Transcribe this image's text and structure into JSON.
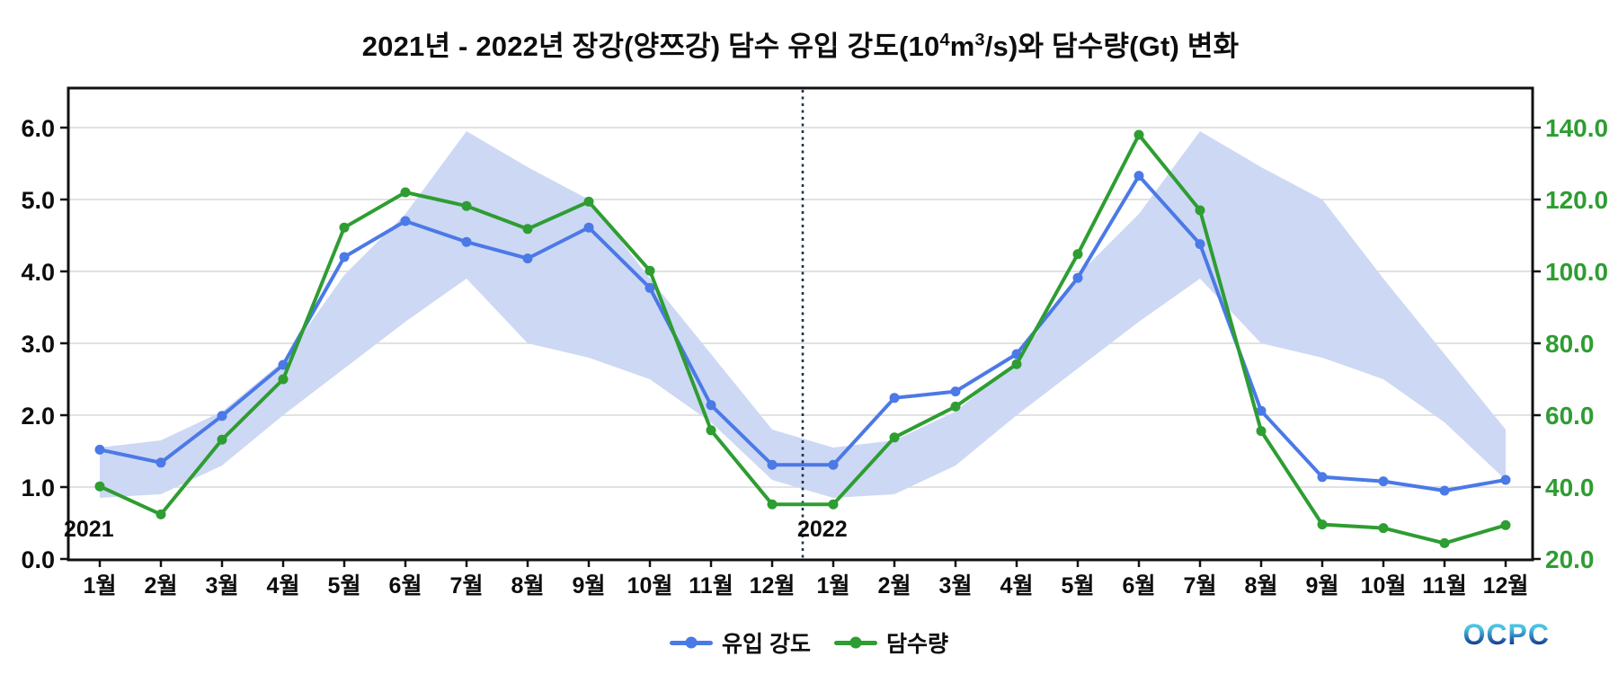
{
  "title": {
    "pre": "2021년 - 2022년 장강(양쯔강) 담수 유입 강도(10",
    "sup_a": "4",
    "mid": "m",
    "sup_b": "3",
    "post": "/s)와 담수량(Gt) 변화"
  },
  "legend": {
    "items": [
      {
        "label": "유입 강도",
        "color": "#4b79e6",
        "marker": "circle-on-line"
      },
      {
        "label": "담수량",
        "color": "#2e9d32",
        "marker": "circle-on-line"
      }
    ]
  },
  "logo": {
    "text": "OCPC",
    "gradient_top": "#4cc2e2",
    "gradient_bottom": "#153f92"
  },
  "chart_data": {
    "type": "line",
    "title": "2021년 - 2022년 장강(양쯔강) 담수 유입 강도(10⁴m³/s)와 담수량(Gt) 변화",
    "x_tick_labels": [
      "1월",
      "2월",
      "3월",
      "4월",
      "5월",
      "6월",
      "7월",
      "8월",
      "9월",
      "10월",
      "11월",
      "12월",
      "1월",
      "2월",
      "3월",
      "4월",
      "5월",
      "6월",
      "7월",
      "8월",
      "9월",
      "10월",
      "11월",
      "12월"
    ],
    "year_labels": [
      {
        "text": "2021",
        "month_index": 0
      },
      {
        "text": "2022",
        "month_index": 12
      }
    ],
    "left_axis": {
      "ticks": [
        0.0,
        1.0,
        2.0,
        3.0,
        4.0,
        5.0,
        6.0
      ],
      "range": [
        0.0,
        6.55
      ],
      "text_color": "#0d0d0d"
    },
    "right_axis": {
      "ticks": [
        20.0,
        40.0,
        60.0,
        80.0,
        100.0,
        120.0,
        140.0
      ],
      "range": [
        20.0,
        151.0
      ],
      "text_color": "#2e9d32",
      "mapping_note": "right = 20 + left * 20"
    },
    "series": [
      {
        "name": "유입 강도",
        "axis": "left",
        "color": "#4b79e6",
        "values": [
          1.52,
          1.34,
          1.99,
          2.7,
          4.2,
          4.7,
          4.41,
          4.18,
          4.61,
          3.77,
          2.14,
          1.31,
          1.31,
          2.24,
          2.33,
          2.85,
          3.91,
          5.33,
          4.38,
          2.06,
          1.14,
          1.08,
          0.95,
          1.1
        ]
      },
      {
        "name": "담수량",
        "axis": "right",
        "color": "#2e9d32",
        "values": [
          40.2,
          32.4,
          53.2,
          70.0,
          112.2,
          122.0,
          118.2,
          111.8,
          119.4,
          100.2,
          55.8,
          35.2,
          35.2,
          53.8,
          62.4,
          74.2,
          104.8,
          138.0,
          117.0,
          55.6,
          29.6,
          28.6,
          24.4,
          29.4
        ]
      }
    ],
    "band": {
      "axis": "left",
      "color": "#cdd8f4",
      "lower": [
        0.85,
        0.9,
        1.3,
        2.0,
        2.65,
        3.3,
        3.9,
        3.0,
        2.8,
        2.5,
        1.9,
        1.1,
        0.85,
        0.9,
        1.3,
        2.0,
        2.65,
        3.3,
        3.9,
        3.0,
        2.8,
        2.5,
        1.9,
        1.1
      ],
      "upper": [
        1.55,
        1.65,
        2.05,
        2.75,
        3.95,
        4.8,
        5.95,
        5.45,
        5.0,
        3.9,
        2.85,
        1.8,
        1.55,
        1.65,
        2.05,
        2.75,
        3.95,
        4.8,
        5.95,
        5.45,
        5.0,
        3.9,
        2.85,
        1.8
      ]
    },
    "divider": {
      "between_indices": [
        11,
        12
      ],
      "style": "dotted-vertical",
      "color": "#1e3350"
    },
    "colors": {
      "grid": "#d9d9d9",
      "frame": "#111111",
      "tick": "#111111"
    },
    "grid": "horizontal-only",
    "legend_position": "bottom-center"
  }
}
